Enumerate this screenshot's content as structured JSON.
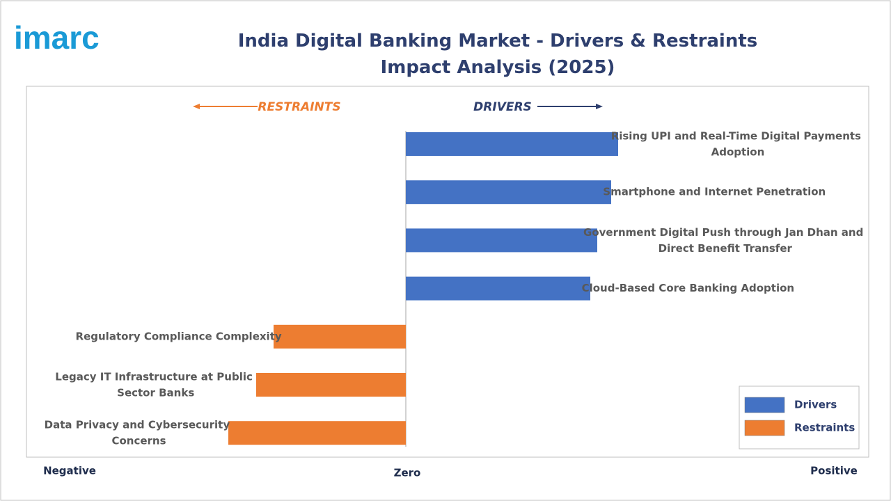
{
  "brand": "imarc",
  "chart_data": {
    "type": "diverging-bar",
    "title": "India Digital Banking Market - Drivers & Restraints Impact Analysis (2025)",
    "annotations": {
      "left": "RESTRAINTS",
      "right": "DRIVERS"
    },
    "axis_labels": {
      "negative": "Negative",
      "zero": "Zero",
      "positive": "Positive"
    },
    "categories": [
      "Rising UPI and Real-Time Digital Payments Adoption",
      "Smartphone and Internet Penetration",
      "Government Digital Push through Jan Dhan and Direct Benefit Transfer",
      "Cloud-Based Core Banking Adoption",
      "Regulatory Compliance Complexity",
      "Legacy IT Infrastructure at Public Sector Banks",
      "Data Privacy and Cybersecurity Concerns"
    ],
    "series": [
      {
        "name": "Drivers",
        "color": "#4472c4",
        "values": [
          6.1,
          5.9,
          5.5,
          5.3,
          null,
          null,
          null
        ]
      },
      {
        "name": "Restraints",
        "color": "#ed7d31",
        "values": [
          null,
          null,
          null,
          null,
          -3.8,
          -4.3,
          -5.1
        ]
      }
    ],
    "xlim": [
      -10.9,
      13.3
    ],
    "legend": "bottom-right"
  }
}
